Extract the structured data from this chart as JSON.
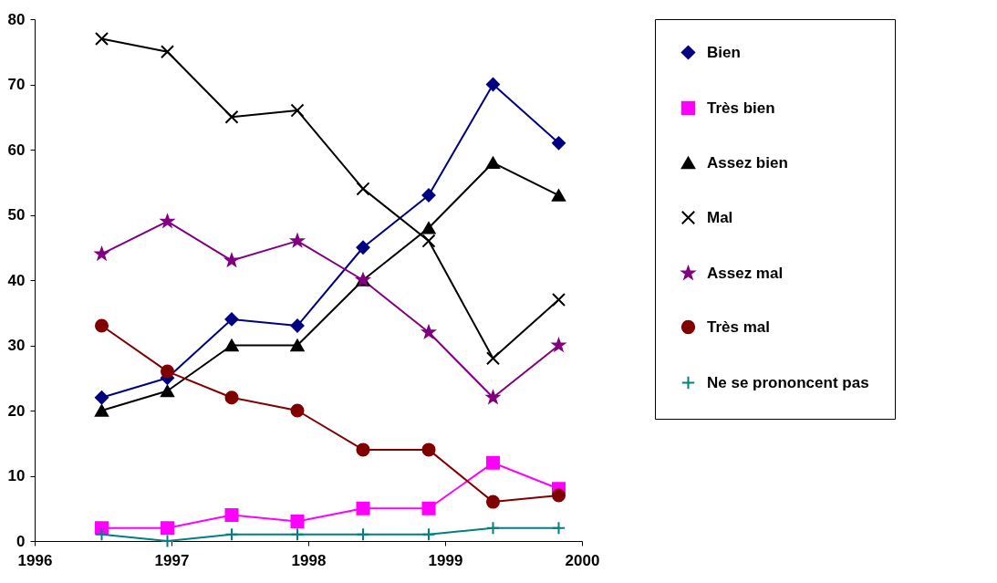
{
  "chart_data": {
    "type": "line",
    "x": [
      1996.49,
      1996.97,
      1997.44,
      1997.92,
      1998.4,
      1998.88,
      1999.35,
      1999.83
    ],
    "series": [
      {
        "name": "Bien",
        "color": "#000080",
        "marker": "diamond",
        "values": [
          22,
          25,
          34,
          33,
          45,
          53,
          70,
          61
        ]
      },
      {
        "name": "Très bien",
        "color": "#ff00ff",
        "marker": "square",
        "values": [
          2,
          2,
          4,
          3,
          5,
          5,
          12,
          8
        ]
      },
      {
        "name": "Assez bien",
        "color": "#000000",
        "marker": "triangle",
        "values": [
          20,
          23,
          30,
          30,
          40,
          48,
          58,
          53
        ]
      },
      {
        "name": "Mal",
        "color": "#000000",
        "marker": "cross",
        "values": [
          77,
          75,
          65,
          66,
          54,
          46,
          28,
          37
        ]
      },
      {
        "name": "Assez mal",
        "color": "#800080",
        "marker": "star",
        "values": [
          44,
          49,
          43,
          46,
          40,
          32,
          22,
          30
        ]
      },
      {
        "name": "Très mal",
        "color": "#800000",
        "marker": "circle",
        "values": [
          33,
          26,
          22,
          20,
          14,
          14,
          6,
          7
        ]
      },
      {
        "name": "Ne se prononcent pas",
        "color": "#008080",
        "marker": "plus",
        "values": [
          1,
          0,
          1,
          1,
          1,
          1,
          2,
          2
        ]
      }
    ],
    "xlim": [
      1996,
      2000
    ],
    "xticks": [
      1996,
      1997,
      1998,
      1999,
      2000
    ],
    "ylim": [
      0,
      80
    ],
    "yticks": [
      0,
      10,
      20,
      30,
      40,
      50,
      60,
      70,
      80
    ],
    "grid": false,
    "legend": "right"
  }
}
